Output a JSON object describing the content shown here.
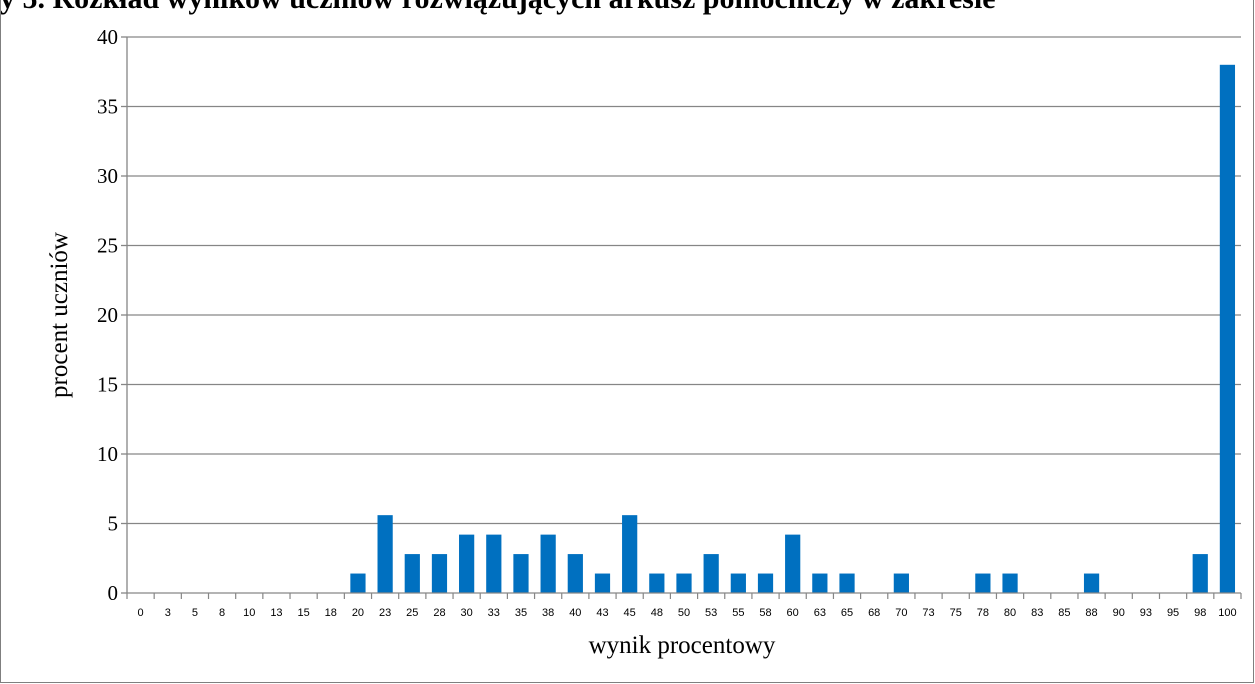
{
  "header": {
    "cropped_caption": "y 5. Rozkład wyników uczniów rozwiązujących arkusz pomocniczy w zakresie"
  },
  "colors": {
    "bar": "#0070C0",
    "gridline": "#868686",
    "axis": "#868686",
    "frame": "#7f7f7f"
  },
  "chart_data": {
    "type": "bar",
    "title": "",
    "xlabel": "wynik  procentowy",
    "ylabel": "procent uczniów",
    "ylim": [
      0,
      40
    ],
    "yticks": [
      0,
      5,
      10,
      15,
      20,
      25,
      30,
      35,
      40
    ],
    "grid": true,
    "legend": "none",
    "categories": [
      "0",
      "3",
      "5",
      "8",
      "10",
      "13",
      "15",
      "18",
      "20",
      "23",
      "25",
      "28",
      "30",
      "33",
      "35",
      "38",
      "40",
      "43",
      "45",
      "48",
      "50",
      "53",
      "55",
      "58",
      "60",
      "63",
      "65",
      "68",
      "70",
      "73",
      "75",
      "78",
      "80",
      "83",
      "85",
      "88",
      "90",
      "93",
      "95",
      "98",
      "100"
    ],
    "values": [
      0,
      0,
      0,
      0,
      0,
      0,
      0,
      0,
      1.4,
      5.6,
      2.8,
      2.8,
      4.2,
      4.2,
      2.8,
      4.2,
      2.8,
      1.4,
      5.6,
      1.4,
      1.4,
      2.8,
      1.4,
      1.4,
      4.2,
      1.4,
      1.4,
      0,
      1.4,
      0,
      0,
      1.4,
      1.4,
      0,
      0,
      1.4,
      0,
      0,
      0,
      2.8,
      38.0
    ]
  }
}
